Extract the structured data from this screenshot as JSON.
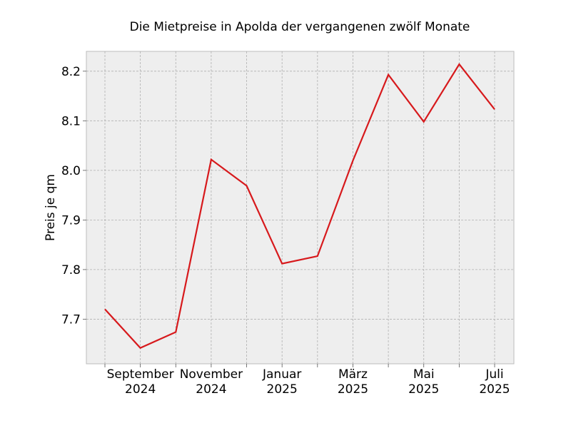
{
  "chart_data": {
    "type": "line",
    "title": "Die Mietpreise in Apolda der vergangenen zwölf Monate",
    "xlabel": "",
    "ylabel": "Preis je qm",
    "x": [
      "2024-08",
      "2024-09",
      "2024-10",
      "2024-11",
      "2024-12",
      "2025-01",
      "2025-02",
      "2025-03",
      "2025-04",
      "2025-05",
      "2025-06",
      "2025-07"
    ],
    "series": [
      {
        "values": [
          7.72,
          7.642,
          7.674,
          8.022,
          7.969,
          7.812,
          7.827,
          8.02,
          8.193,
          8.098,
          8.214,
          8.123
        ]
      }
    ],
    "ylim": [
      7.61,
      8.24
    ],
    "yticks": [
      7.7,
      7.8,
      7.9,
      8.0,
      8.1,
      8.2
    ],
    "ytick_labels": [
      "7.7",
      "7.8",
      "7.9",
      "8.0",
      "8.1",
      "8.2"
    ],
    "xticks_labeled": [
      {
        "x": "2024-09",
        "lines": [
          "September",
          "2024"
        ]
      },
      {
        "x": "2024-11",
        "lines": [
          "November",
          "2024"
        ]
      },
      {
        "x": "2025-01",
        "lines": [
          "Januar",
          "2025"
        ]
      },
      {
        "x": "2025-03",
        "lines": [
          "März",
          "2025"
        ]
      },
      {
        "x": "2025-05",
        "lines": [
          "Mai",
          "2025"
        ]
      },
      {
        "x": "2025-07",
        "lines": [
          "Juli",
          "2025"
        ]
      }
    ],
    "grid": true,
    "colors": {
      "line": "#d7191c",
      "plot_background": "#eeeeee",
      "grid": "#b0b0b0",
      "frame": "#bcbcbc"
    }
  }
}
